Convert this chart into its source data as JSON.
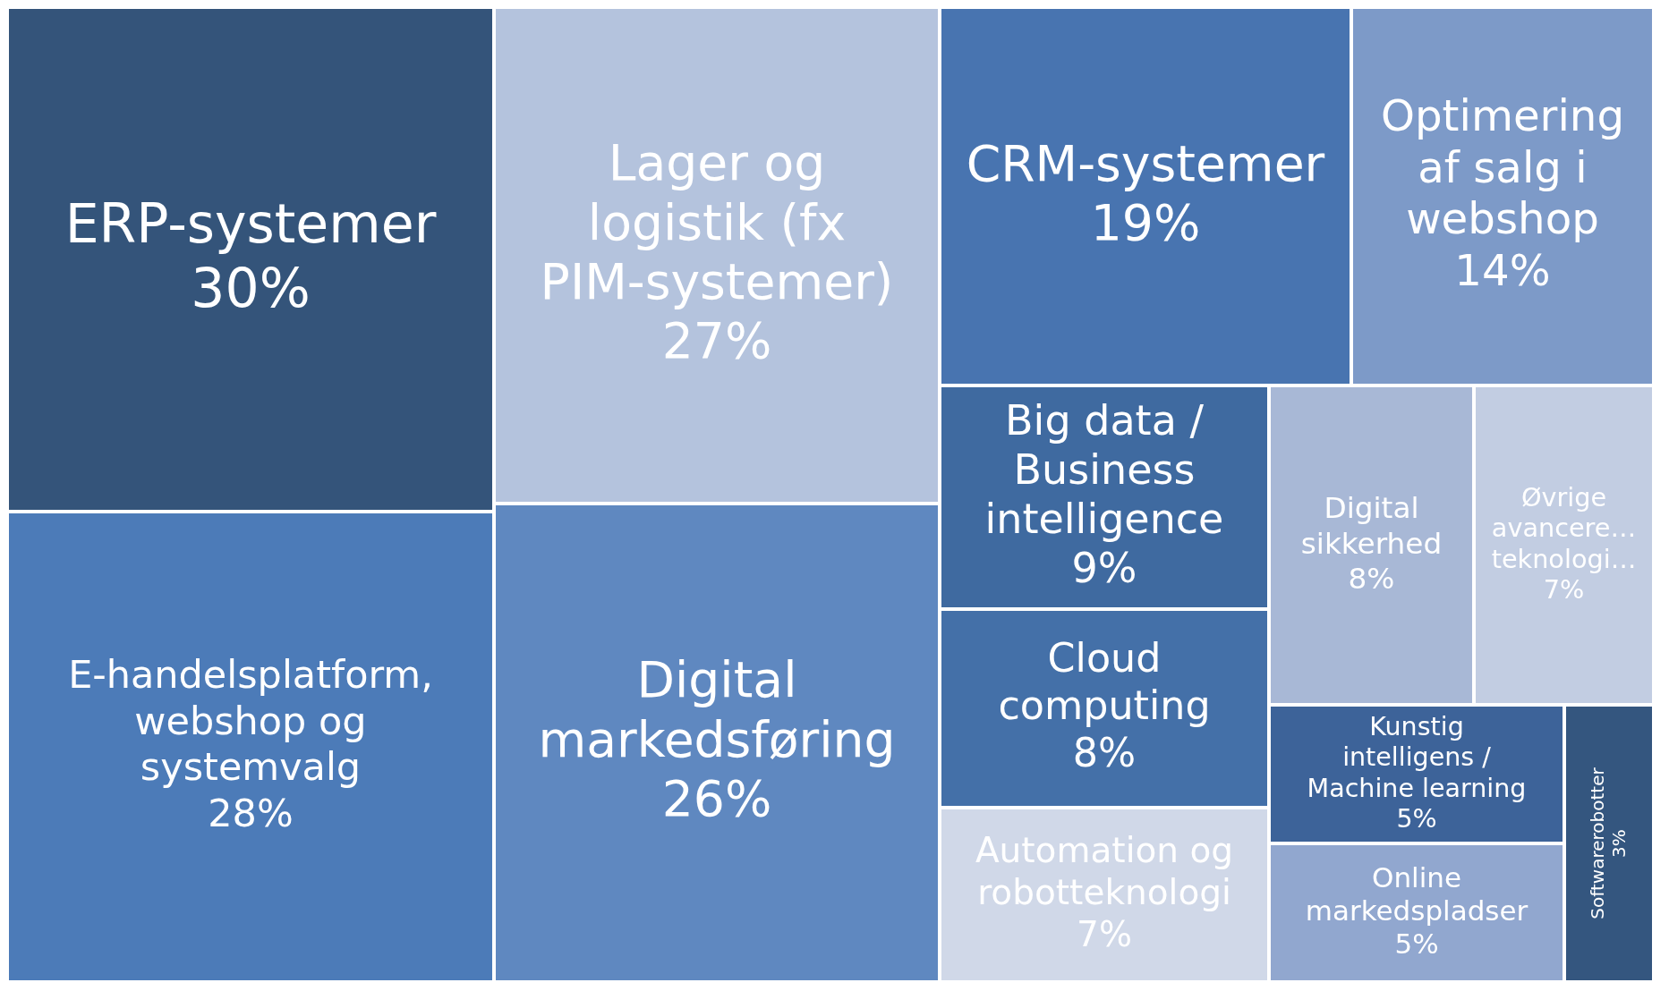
{
  "chart_data": {
    "type": "other",
    "categories": [
      "ERP-systemer",
      "E-handelsplatform, webshop og systemvalg",
      "Lager og logistik (fx PIM-systemer)",
      "Digital markedsføring",
      "CRM-systemer",
      "Optimering af salg i webshop",
      "Big data / Business intelligence",
      "Cloud computing",
      "Automation og robotteknologi",
      "Digital sikkerhed",
      "Øvrige avancere… teknologi…",
      "Kunstig intelligens / Machine learning",
      "Online markedspladser",
      "Softwarerobotter"
    ],
    "values": [
      30,
      28,
      27,
      26,
      19,
      14,
      9,
      8,
      7,
      8,
      7,
      5,
      5,
      3
    ],
    "value_labels": [
      "30%",
      "28%",
      "27%",
      "26%",
      "19%",
      "14%",
      "9%",
      "8%",
      "7%",
      "8%",
      "7%",
      "5%",
      "5%",
      "3%"
    ],
    "colors": [
      "#34547a",
      "#4c7bb8",
      "#b4c3dd",
      "#5f88c0",
      "#4874b0",
      "#7d9ac8",
      "#3f6aa0",
      "#4470a8",
      "#d0d8e8",
      "#a8b8d6",
      "#c2cde2",
      "#3d6399",
      "#91a7cf",
      "#34567f"
    ]
  }
}
